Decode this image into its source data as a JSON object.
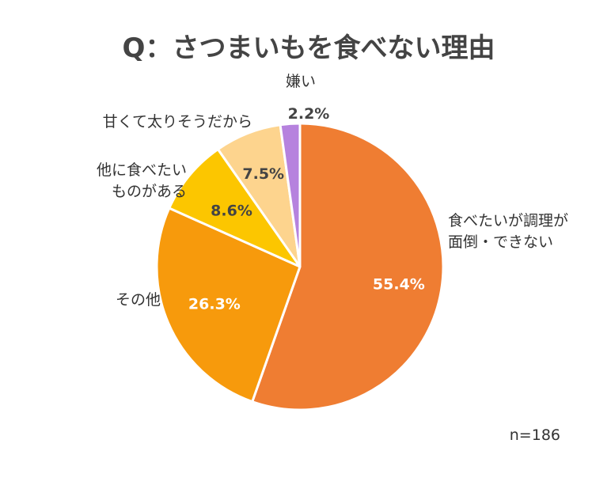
{
  "chart_data": {
    "type": "pie",
    "title": "Q：さつまいもを食べない理由",
    "note": "n=186",
    "start": "top",
    "direction": "clockwise",
    "slices": [
      {
        "label": [
          "食べたいが調理が",
          "面倒・できない"
        ],
        "value": 55.4,
        "display": "55.4%",
        "color": "#ef7d32",
        "pct_color": "#ffffff"
      },
      {
        "label": [
          "その他"
        ],
        "value": 26.3,
        "display": "26.3%",
        "color": "#f79a0c",
        "pct_color": "#ffffff"
      },
      {
        "label": [
          "他に食べたい",
          "ものがある"
        ],
        "value": 8.6,
        "display": "8.6%",
        "color": "#fcc600",
        "pct_color": "#444444"
      },
      {
        "label": [
          "甘くて太りそうだから"
        ],
        "value": 7.5,
        "display": "7.5%",
        "color": "#fdd48e",
        "pct_color": "#444444"
      },
      {
        "label": [
          "嫌い"
        ],
        "value": 2.2,
        "display": "2.2%",
        "color": "#b682de",
        "pct_color": "#444444"
      }
    ]
  }
}
